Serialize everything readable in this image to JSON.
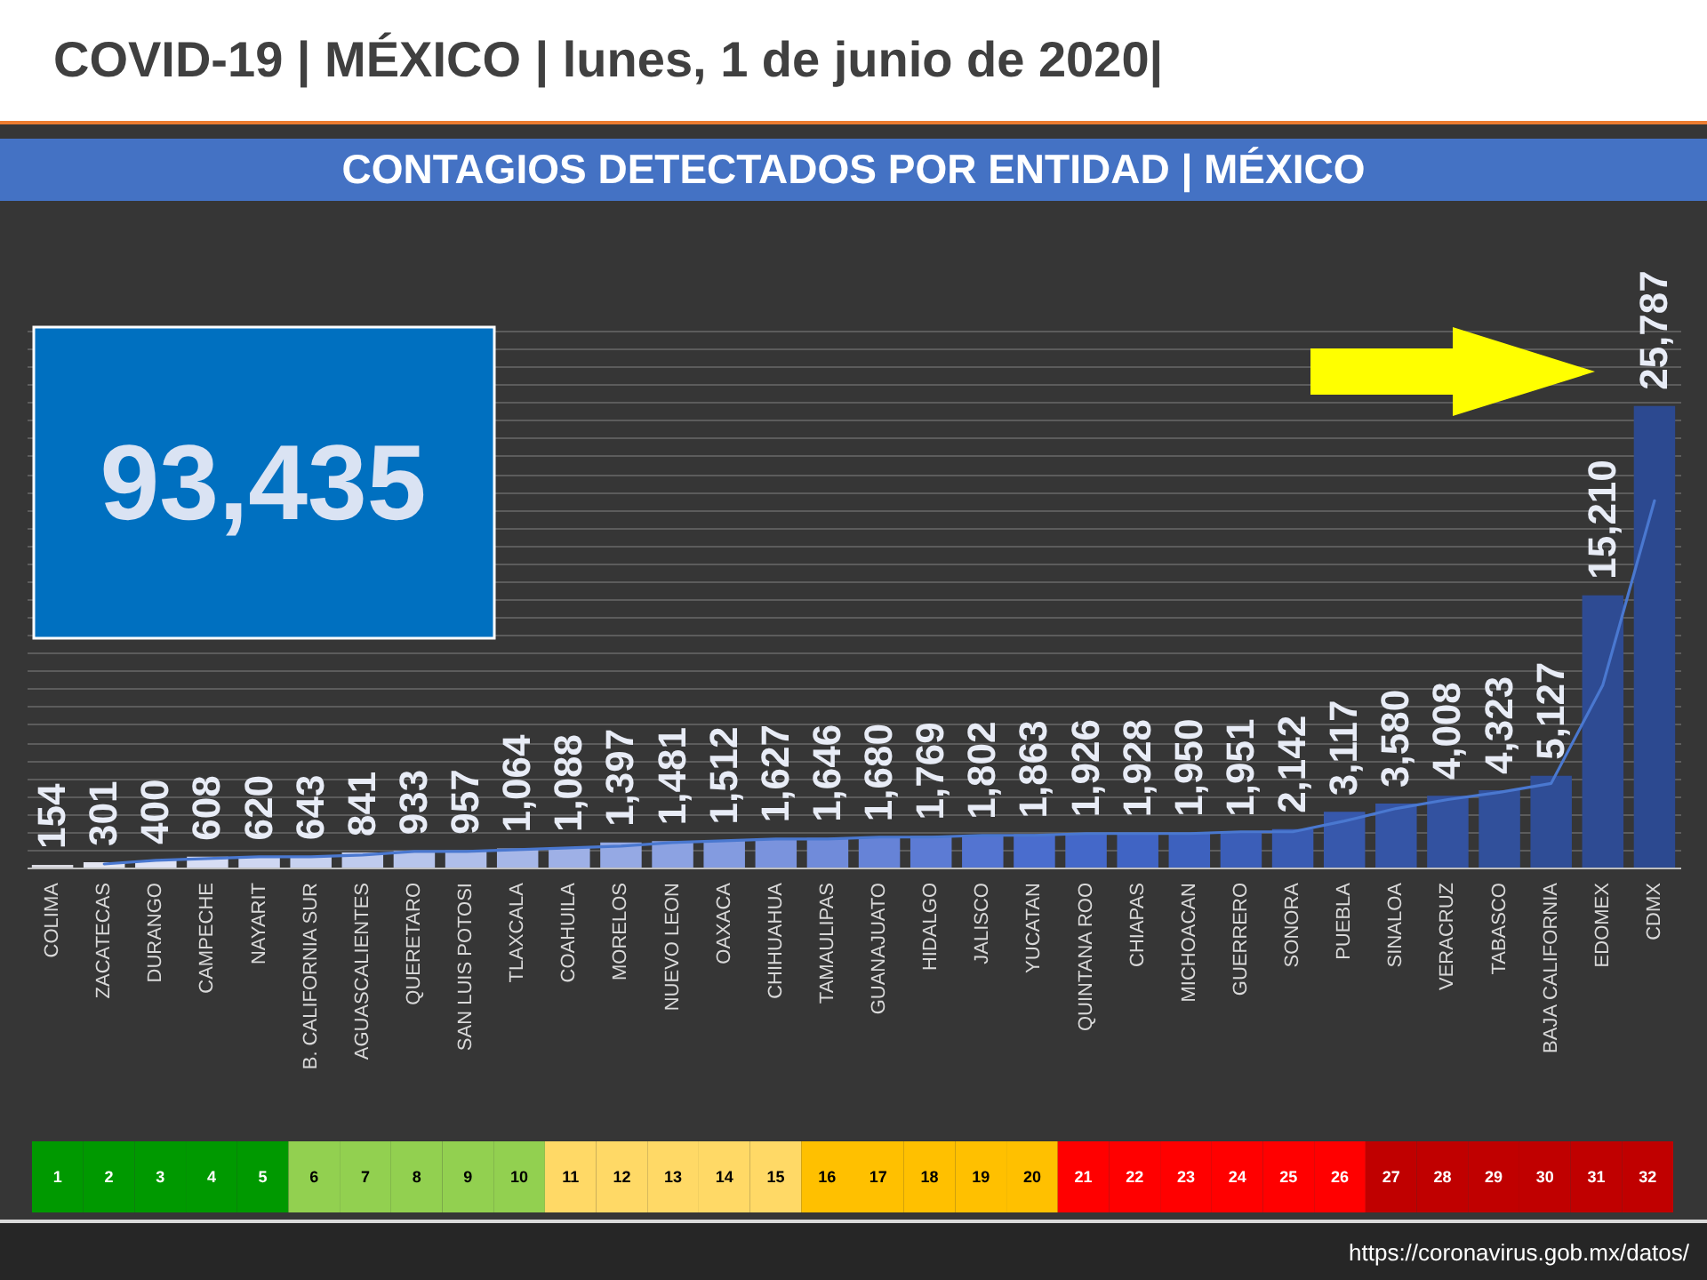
{
  "chart_data": [
    {
      "type": "bar",
      "title": "COVID-19 | MÉXICO | lunes, 1 de junio de 2020|",
      "subtitle": "CONTAGIOS DETECTADOS POR ENTIDAD | MÉXICO",
      "annotations": [
        "93,435",
        "https://coronavirus.gob.mx/datos/"
      ],
      "categories": [
        "COLIMA",
        "ZACATECAS",
        "DURANGO",
        "CAMPECHE",
        "NAYARIT",
        "B. CALIFORNIA SUR",
        "AGUASCALIENTES",
        "QUERETARO",
        "SAN LUIS POTOSI",
        "TLAXCALA",
        "COAHUILA",
        "MORELOS",
        "NUEVO LEON",
        "OAXACA",
        "CHIHUAHUA",
        "TAMAULIPAS",
        "GUANAJUATO",
        "HIDALGO",
        "JALISCO",
        "YUCATAN",
        "QUINTANA ROO",
        "CHIAPAS",
        "MICHOACAN",
        "GUERRERO",
        "SONORA",
        "PUEBLA",
        "SINALOA",
        "VERACRUZ",
        "TABASCO",
        "BAJA CALIFORNIA",
        "EDOMEX",
        "CDMX"
      ],
      "series": [
        {
          "type": "bar",
          "values": [
            154,
            301,
            400,
            608,
            620,
            643,
            841,
            933,
            957,
            1064,
            1088,
            1397,
            1481,
            1512,
            1627,
            1646,
            1680,
            1769,
            1802,
            1863,
            1926,
            1928,
            1950,
            1951,
            2142,
            3117,
            3580,
            4008,
            4323,
            5127,
            15210,
            25787
          ],
          "value_labels": [
            "154",
            "301",
            "400",
            "608",
            "620",
            "643",
            "841",
            "933",
            "957",
            "1,064",
            "1,088",
            "1,397",
            "1,481",
            "1,512",
            "1,627",
            "1,646",
            "1,680",
            "1,769",
            "1,802",
            "1,863",
            "1,926",
            "1,928",
            "1,950",
            "1,951",
            "2,142",
            "3,117",
            "3,580",
            "4,008",
            "4,323",
            "5,127",
            "15,210",
            "25,787"
          ],
          "colors": [
            "#d9d9e0",
            "#e4e6f2",
            "#dfe3f5",
            "#d7ddf4",
            "#cfd7f2",
            "#c7d1f0",
            "#bfcbee",
            "#b7c5ec",
            "#afbeea",
            "#a6b7e8",
            "#9eb0e6",
            "#95a9e4",
            "#8ca2e2",
            "#839be0",
            "#7a93dd",
            "#708bda",
            "#6683d7",
            "#5c7bd4",
            "#5374d1",
            "#4a6dce",
            "#4468c9",
            "#4064c4",
            "#3d61be",
            "#3b5eb8",
            "#395bb2",
            "#3758ac",
            "#3555a6",
            "#3352a0",
            "#31509b",
            "#2f4d96",
            "#2e4b93",
            "#2c4990"
          ]
        },
        {
          "type": "line",
          "color": "#4a78d0",
          "values": [
            null,
            200,
            400,
            500,
            600,
            600,
            700,
            900,
            900,
            1000,
            1100,
            1200,
            1400,
            1500,
            1600,
            1600,
            1700,
            1700,
            1800,
            1800,
            1900,
            1900,
            1900,
            2000,
            2000,
            2600,
            3300,
            3800,
            4200,
            4700,
            10200,
            20500
          ]
        }
      ],
      "ylim": [
        0,
        30000
      ],
      "grid": "y",
      "tick_labels": "x"
    },
    {
      "type": "heatmap",
      "categories": [
        null,
        null,
        null,
        null,
        null,
        null,
        null,
        null,
        null,
        null,
        null,
        null,
        null,
        null,
        null,
        null,
        null,
        null,
        null,
        null,
        null,
        null,
        null,
        null,
        null,
        null,
        null,
        null,
        null,
        null,
        null,
        null
      ],
      "y_categories": [
        null
      ],
      "cells": [
        [
          1,
          2,
          3,
          4,
          5,
          6,
          7,
          8,
          9,
          10,
          11,
          12,
          13,
          14,
          15,
          16,
          17,
          18,
          19,
          20,
          21,
          22,
          23,
          24,
          25,
          26,
          27,
          28,
          29,
          30,
          31,
          32
        ]
      ],
      "colors": [
        "#009900",
        "#009900",
        "#009900",
        "#009900",
        "#009900",
        "#92d050",
        "#92d050",
        "#92d050",
        "#92d050",
        "#92d050",
        "#ffd966",
        "#ffd966",
        "#ffd966",
        "#ffd966",
        "#ffd966",
        "#ffc000",
        "#ffc000",
        "#ffc000",
        "#ffc000",
        "#ffc000",
        "#ff0000",
        "#ff0000",
        "#ff0000",
        "#ff0000",
        "#ff0000",
        "#ff0000",
        "#c00000",
        "#c00000",
        "#c00000",
        "#c00000",
        "#c00000",
        "#c00000"
      ],
      "data_labels": true
    }
  ]
}
